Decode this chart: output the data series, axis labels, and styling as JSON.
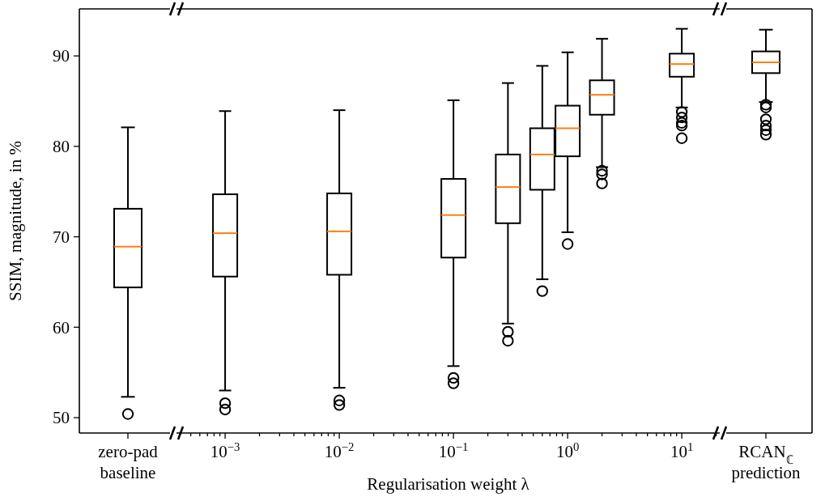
{
  "chart_data": [
    {
      "type": "box",
      "ylabel": "SSIM, magnitude, in %",
      "categories": [
        "zero-pad baseline"
      ],
      "color": "#000000",
      "marker": "circle",
      "ylim": [
        48.3,
        95.2
      ],
      "yticks": [
        50,
        60,
        70,
        80,
        90
      ],
      "boxes": [
        {
          "low": 52.3,
          "q1": 64.4,
          "median": 68.9,
          "q3": 73.1,
          "high": 82.1,
          "outliers": [
            50.4
          ]
        }
      ]
    },
    {
      "type": "box",
      "xlabel": "Regularisation weight λ",
      "x": [
        0.001,
        0.01,
        0.1,
        0.3,
        0.6,
        1,
        2,
        10
      ],
      "color": "#000000",
      "marker": "circle",
      "log": "x",
      "xlim": [
        0.000375,
        21.5
      ],
      "ylim": [
        48.3,
        95.2
      ],
      "tick_labels": "x",
      "xticks": [
        {
          "value": 0.0004,
          "label": null
        },
        {
          "value": 0.0005,
          "label": null
        },
        {
          "value": 0.0006,
          "label": null
        },
        {
          "value": 0.0007,
          "label": null
        },
        {
          "value": 0.0008,
          "label": null
        },
        {
          "value": 0.0009,
          "label": null
        },
        {
          "value": 0.001,
          "label": "10$^{−3}$"
        },
        {
          "value": 0.002,
          "label": null
        },
        {
          "value": 0.003,
          "label": null
        },
        {
          "value": 0.004,
          "label": null
        },
        {
          "value": 0.005,
          "label": null
        },
        {
          "value": 0.006,
          "label": null
        },
        {
          "value": 0.007,
          "label": null
        },
        {
          "value": 0.008,
          "label": null
        },
        {
          "value": 0.009,
          "label": null
        },
        {
          "value": 0.01,
          "label": "10$^{−2}$"
        },
        {
          "value": 0.02,
          "label": null
        },
        {
          "value": 0.03,
          "label": null
        },
        {
          "value": 0.04,
          "label": null
        },
        {
          "value": 0.05,
          "label": null
        },
        {
          "value": 0.06,
          "label": null
        },
        {
          "value": 0.07,
          "label": null
        },
        {
          "value": 0.08,
          "label": null
        },
        {
          "value": 0.09,
          "label": null
        },
        {
          "value": 0.1,
          "label": "10$^{−1}$"
        },
        {
          "value": 0.2,
          "label": null
        },
        {
          "value": 0.3,
          "label": null
        },
        {
          "value": 0.4,
          "label": null
        },
        {
          "value": 0.5,
          "label": null
        },
        {
          "value": 0.6,
          "label": null
        },
        {
          "value": 0.7,
          "label": null
        },
        {
          "value": 0.8,
          "label": null
        },
        {
          "value": 0.9,
          "label": null
        },
        {
          "value": 1,
          "label": "10$^{0}$"
        },
        {
          "value": 2,
          "label": null
        },
        {
          "value": 3,
          "label": null
        },
        {
          "value": 4,
          "label": null
        },
        {
          "value": 5,
          "label": null
        },
        {
          "value": 6,
          "label": null
        },
        {
          "value": 7,
          "label": null
        },
        {
          "value": 8,
          "label": null
        },
        {
          "value": 9,
          "label": null
        },
        {
          "value": 10,
          "label": "10$^{1}$"
        },
        {
          "value": 20,
          "label": null
        }
      ],
      "boxes": [
        {
          "low": 53.0,
          "q1": 65.6,
          "median": 70.4,
          "q3": 74.7,
          "high": 83.9,
          "outliers": [
            51.6,
            50.9
          ]
        },
        {
          "low": 53.3,
          "q1": 65.8,
          "median": 70.6,
          "q3": 74.8,
          "high": 84.0,
          "outliers": [
            51.9,
            51.4
          ]
        },
        {
          "low": 55.7,
          "q1": 67.7,
          "median": 72.4,
          "q3": 76.4,
          "high": 85.1,
          "outliers": [
            54.4,
            53.8
          ]
        },
        {
          "low": 60.4,
          "q1": 71.5,
          "median": 75.5,
          "q3": 79.1,
          "high": 87.0,
          "outliers": [
            59.5,
            58.5
          ]
        },
        {
          "low": 65.3,
          "q1": 75.2,
          "median": 79.1,
          "q3": 82.0,
          "high": 88.9,
          "outliers": [
            64.0
          ]
        },
        {
          "low": 70.5,
          "q1": 78.9,
          "median": 82.0,
          "q3": 84.5,
          "high": 90.4,
          "outliers": [
            69.2
          ]
        },
        {
          "low": 77.7,
          "q1": 83.5,
          "median": 85.7,
          "q3": 87.3,
          "high": 91.9,
          "outliers": [
            77.3,
            76.9,
            75.9
          ]
        },
        {
          "low": 84.3,
          "q1": 87.7,
          "median": 89.1,
          "q3": 90.25,
          "high": 93.0,
          "outliers": [
            83.8,
            83.2,
            82.6,
            82.3,
            80.9
          ]
        }
      ]
    },
    {
      "type": "box",
      "categories": [
        "RCAN$_{ℂ}$ prediction"
      ],
      "color": "#000000",
      "marker": "circle",
      "ylim": [
        48.3,
        95.2
      ],
      "tick_labels": "x",
      "boxes": [
        {
          "low": 84.9,
          "q1": 88.1,
          "median": 89.3,
          "q3": 90.5,
          "high": 92.9,
          "outliers": [
            84.6,
            84.3,
            83.0,
            82.3,
            81.8,
            81.3
          ]
        }
      ]
    }
  ]
}
